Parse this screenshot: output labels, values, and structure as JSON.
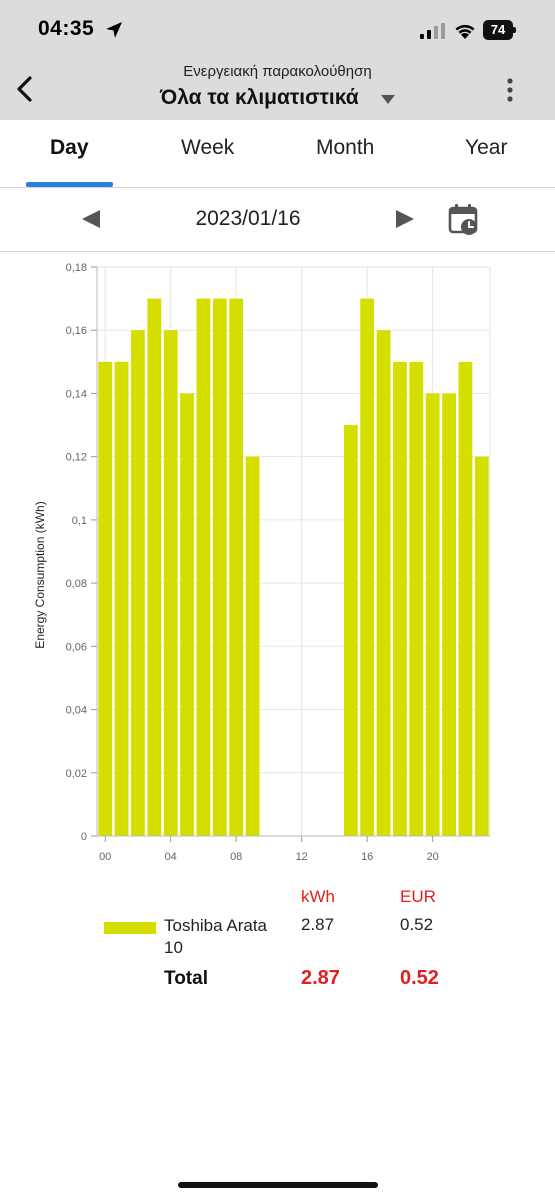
{
  "status_bar": {
    "time": "04:35",
    "battery": "74"
  },
  "app_bar": {
    "subtitle": "Ενεργειακή παρακολούθηση",
    "title": "Όλα τα κλιματιστικά"
  },
  "tabs": [
    {
      "label": "Day",
      "active": true
    },
    {
      "label": "Week",
      "active": false
    },
    {
      "label": "Month",
      "active": false
    },
    {
      "label": "Year",
      "active": false
    }
  ],
  "date_nav": {
    "date": "2023/01/16"
  },
  "colors": {
    "bar": "#d4df00",
    "accent": "#2b7fe0",
    "highlight": "#e02020"
  },
  "chart_data": {
    "type": "bar",
    "ylabel": "Energy Consumption (kWh)",
    "xlabel": "",
    "ylim": [
      0,
      0.18
    ],
    "yticks": [
      0,
      0.02,
      0.04,
      0.06,
      0.08,
      0.1,
      0.12,
      0.14,
      0.16,
      0.18
    ],
    "ytick_labels": [
      "0",
      "0,02",
      "0,04",
      "0,06",
      "0,08",
      "0,1",
      "0,12",
      "0,14",
      "0,16",
      "0,18"
    ],
    "xticks": [
      0,
      4,
      8,
      12,
      16,
      20
    ],
    "xtick_labels": [
      "00",
      "04",
      "08",
      "12",
      "16",
      "20"
    ],
    "x": [
      0,
      1,
      2,
      3,
      4,
      5,
      6,
      7,
      8,
      9,
      10,
      11,
      12,
      13,
      14,
      15,
      16,
      17,
      18,
      19,
      20,
      21,
      22,
      23
    ],
    "values": [
      0.15,
      0.15,
      0.16,
      0.17,
      0.16,
      0.14,
      0.17,
      0.17,
      0.17,
      0.12,
      0,
      0,
      0,
      0,
      0,
      0.13,
      0.17,
      0.16,
      0.15,
      0.15,
      0.14,
      0.14,
      0.15,
      0.12
    ],
    "grid": true
  },
  "summary": {
    "col_kwh": "kWh",
    "col_eur": "EUR",
    "device": {
      "name": "Toshiba Arata 10",
      "kwh": "2.87",
      "eur": "0.52"
    },
    "total": {
      "label": "Total",
      "kwh": "2.87",
      "eur": "0.52"
    }
  }
}
